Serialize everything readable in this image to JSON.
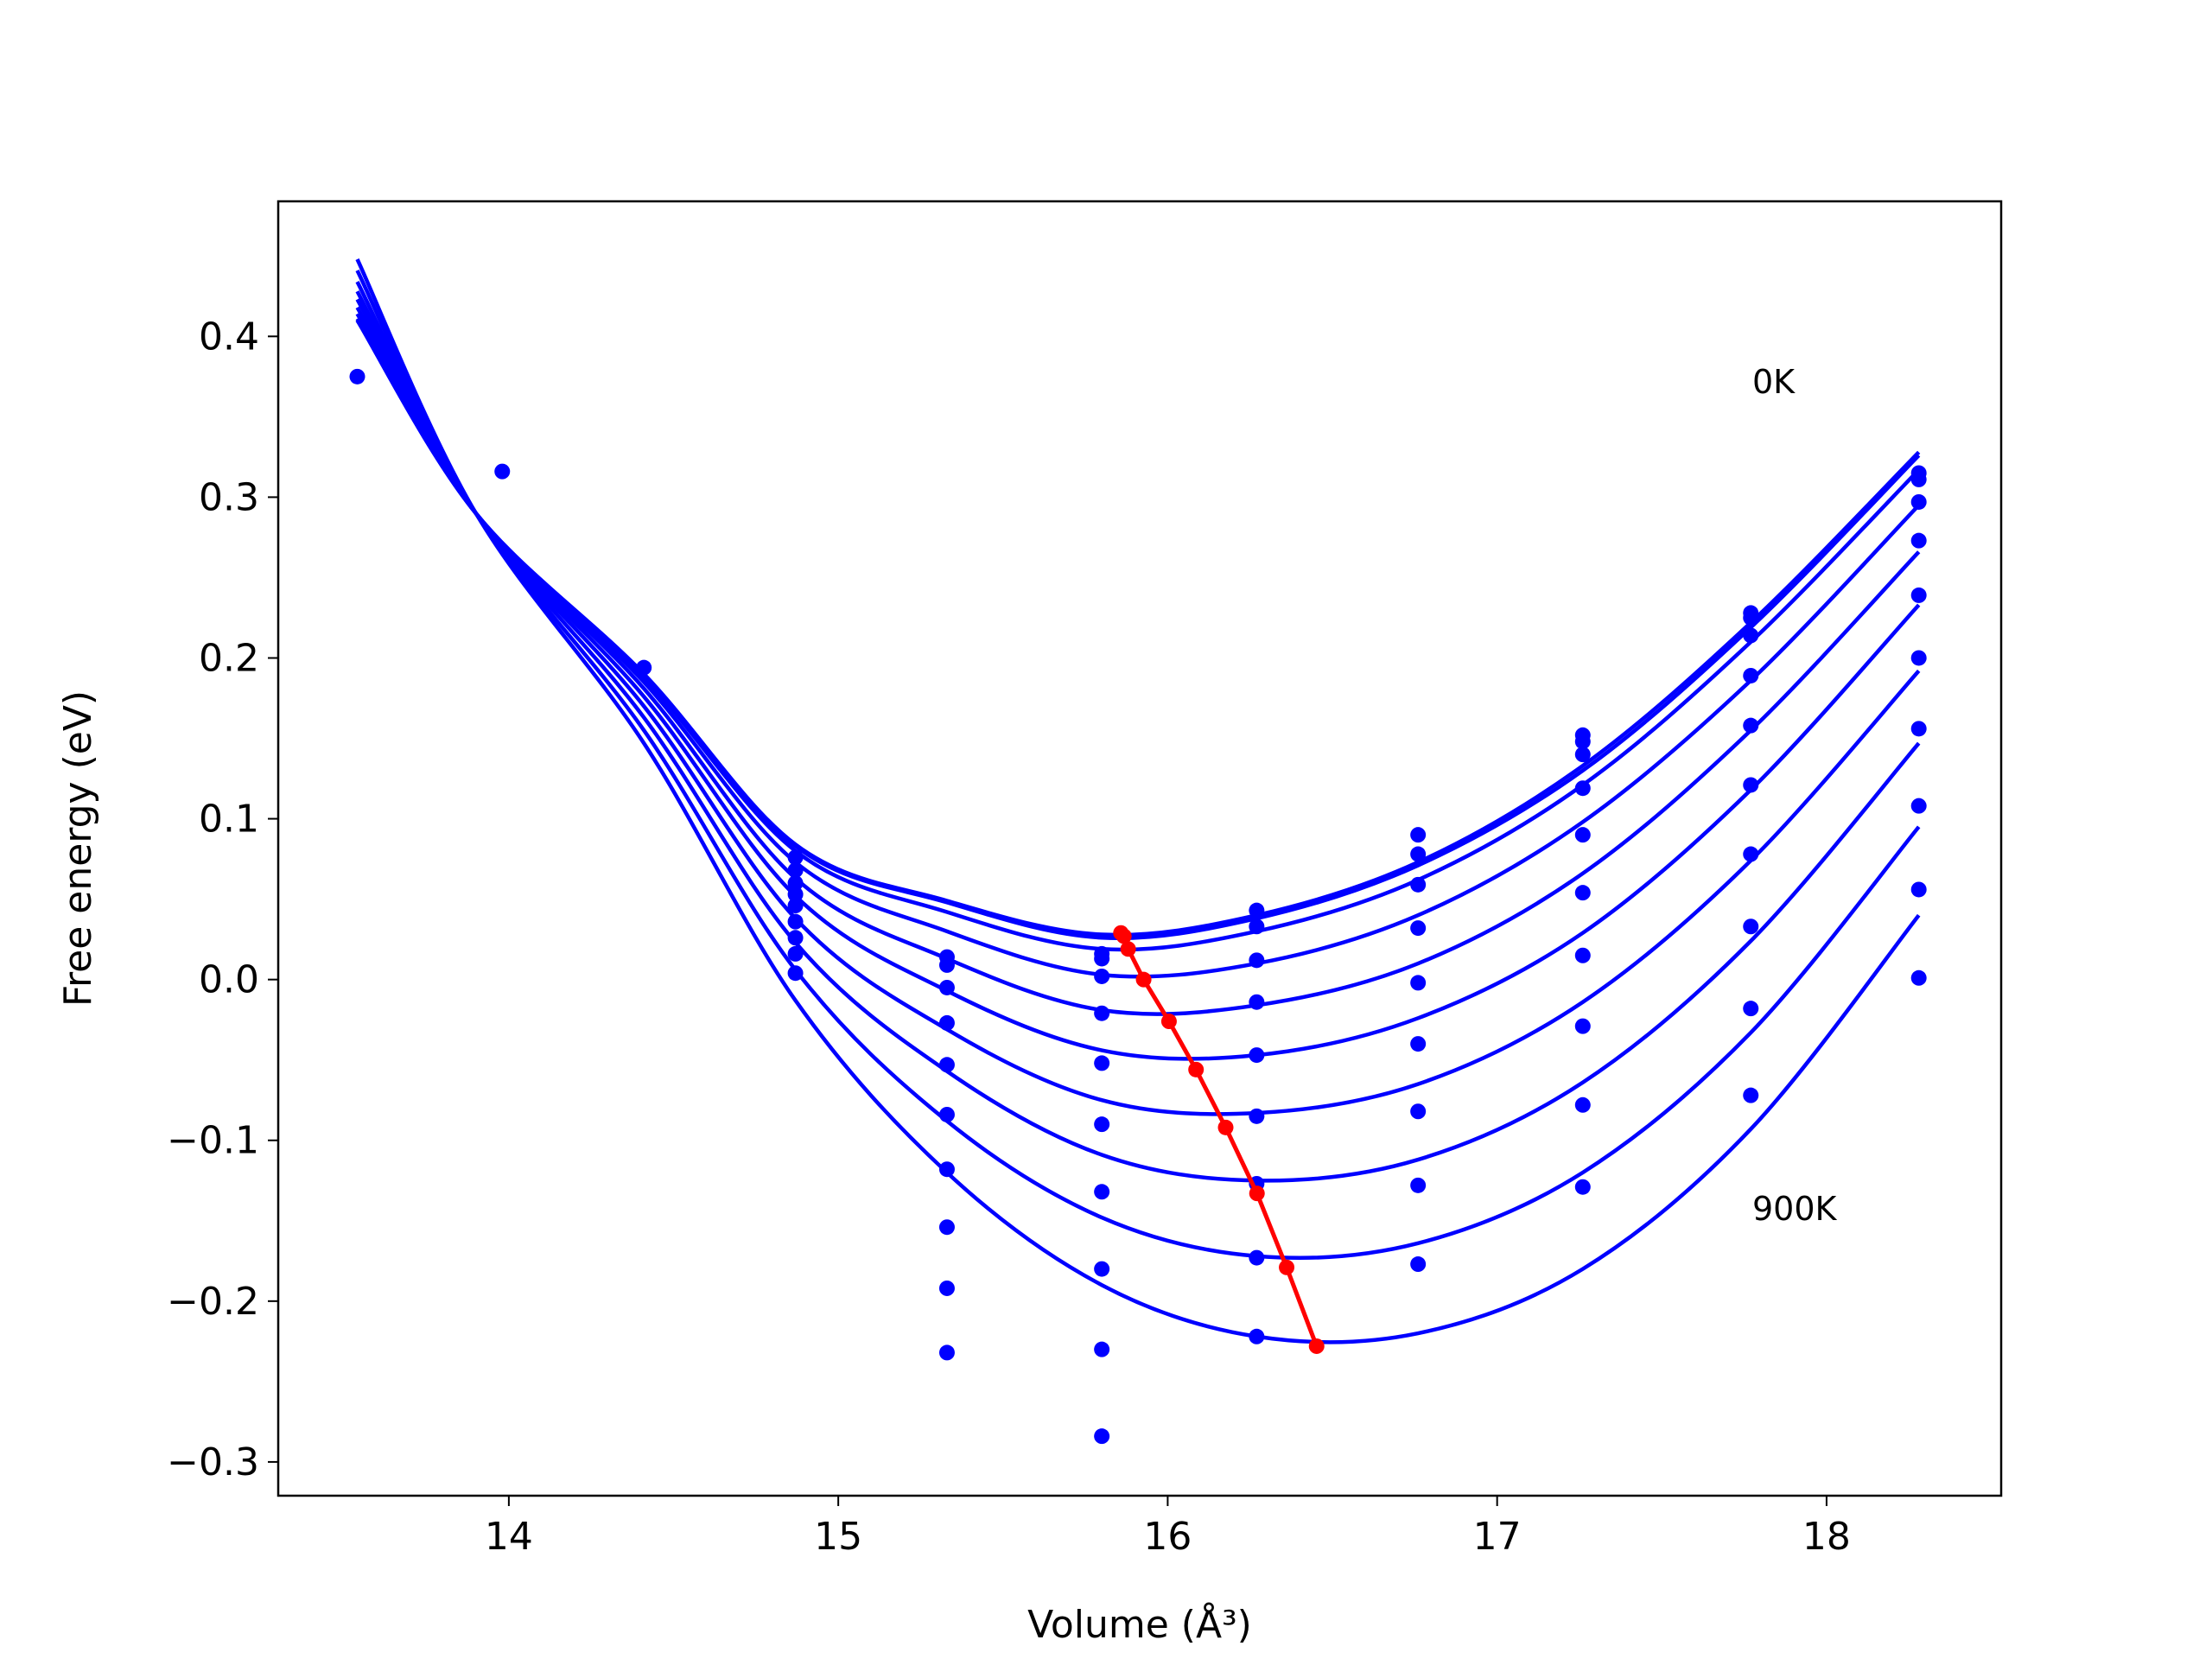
{
  "chart_data": {
    "type": "line",
    "xlabel": "Volume (Å³)",
    "ylabel": "Free energy (eV)",
    "annotations": [
      "0K",
      "900K"
    ],
    "xlim": [
      13.3,
      18.53
    ],
    "ylim": [
      -0.321,
      0.484
    ],
    "xticks": [
      14,
      15,
      16,
      17,
      18
    ],
    "yticks": [
      {
        "value": -0.3,
        "label": "−0.3"
      },
      {
        "value": -0.2,
        "label": "−0.2"
      },
      {
        "value": -0.1,
        "label": "−0.1"
      },
      {
        "value": 0,
        "label": "0.0"
      },
      0.1,
      0.2,
      0.3,
      0.4
    ],
    "x": [
      13.54,
      13.9,
      14.41,
      14.87,
      15.33,
      15.8,
      16.27,
      16.76,
      17.26,
      17.77,
      18.28
    ],
    "series": [
      {
        "color": "#0000ff",
        "values": [
          0.41,
          0.29,
          0.19,
          0.084,
          0.049,
          0.028,
          0.04,
          0.073,
          0.133,
          0.222,
          0.328
        ]
      },
      {
        "color": "#0000ff",
        "values": [
          0.41,
          0.29,
          0.19,
          0.083,
          0.048,
          0.026,
          0.038,
          0.071,
          0.13,
          0.219,
          0.326
        ]
      },
      {
        "color": "#0000ff",
        "values": [
          0.411,
          0.29,
          0.188,
          0.08,
          0.042,
          0.019,
          0.03,
          0.062,
          0.121,
          0.21,
          0.317
        ]
      },
      {
        "color": "#0000ff",
        "values": [
          0.414,
          0.29,
          0.185,
          0.073,
          0.03,
          0.003,
          0.01,
          0.04,
          0.098,
          0.186,
          0.295
        ]
      },
      {
        "color": "#0000ff",
        "values": [
          0.418,
          0.29,
          0.181,
          0.063,
          0.013,
          -0.019,
          -0.016,
          0.01,
          0.066,
          0.155,
          0.266
        ]
      },
      {
        "color": "#0000ff",
        "values": [
          0.423,
          0.29,
          0.176,
          0.052,
          -0.007,
          -0.044,
          -0.047,
          -0.024,
          0.029,
          0.118,
          0.233
        ]
      },
      {
        "color": "#0000ff",
        "values": [
          0.428,
          0.29,
          0.17,
          0.038,
          -0.031,
          -0.075,
          -0.083,
          -0.065,
          -0.014,
          0.074,
          0.192
        ]
      },
      {
        "color": "#0000ff",
        "values": [
          0.434,
          0.29,
          0.163,
          0.023,
          -0.057,
          -0.109,
          -0.125,
          -0.112,
          -0.064,
          0.024,
          0.147
        ]
      },
      {
        "color": "#0000ff",
        "values": [
          0.441,
          0.29,
          0.155,
          0.006,
          -0.088,
          -0.148,
          -0.172,
          -0.164,
          -0.12,
          -0.033,
          0.095
        ]
      },
      {
        "color": "#0000ff",
        "values": [
          0.448,
          0.29,
          0.147,
          -0.013,
          -0.12,
          -0.19,
          -0.222,
          -0.22,
          -0.18,
          -0.093,
          0.04
        ]
      }
    ],
    "points": {
      "color": "#0000ff",
      "x": [
        13.54,
        13.98,
        14.41,
        14.87,
        14.87,
        14.87,
        14.87,
        14.87,
        14.87,
        14.87,
        14.87,
        14.87,
        15.33,
        15.33,
        15.33,
        15.33,
        15.33,
        15.33,
        15.33,
        15.33,
        15.33,
        15.33,
        15.8,
        15.8,
        15.8,
        15.8,
        15.8,
        15.8,
        15.8,
        15.8,
        15.8,
        15.8,
        16.27,
        16.27,
        16.27,
        16.27,
        16.27,
        16.27,
        16.27,
        16.27,
        16.27,
        16.76,
        16.76,
        16.76,
        16.76,
        16.76,
        16.76,
        16.76,
        16.76,
        16.76,
        17.26,
        17.26,
        17.26,
        17.26,
        17.26,
        17.26,
        17.26,
        17.26,
        17.26,
        17.26,
        17.77,
        17.77,
        17.77,
        17.77,
        17.77,
        17.77,
        17.77,
        17.77,
        17.77,
        17.77,
        18.28,
        18.28,
        18.28,
        18.28,
        18.28,
        18.28,
        18.28,
        18.28,
        18.28,
        18.28
      ],
      "values": [
        0.375,
        0.316,
        0.194,
        0.076,
        0.068,
        0.06,
        0.053,
        0.046,
        0.036,
        0.026,
        0.016,
        0.004,
        0.014,
        0.009,
        -0.005,
        -0.027,
        -0.053,
        -0.084,
        -0.118,
        -0.154,
        -0.192,
        -0.232,
        0.016,
        0.013,
        0.002,
        -0.021,
        -0.052,
        -0.09,
        -0.132,
        -0.18,
        -0.23,
        -0.284,
        0.043,
        0.033,
        0.012,
        -0.014,
        -0.047,
        -0.085,
        -0.127,
        -0.173,
        -0.222,
        0.09,
        0.078,
        0.059,
        0.032,
        -0.002,
        -0.04,
        -0.082,
        -0.128,
        -0.177,
        0.152,
        0.148,
        0.14,
        0.119,
        0.09,
        0.054,
        0.015,
        -0.029,
        -0.078,
        -0.129,
        0.228,
        0.225,
        0.214,
        0.189,
        0.158,
        0.121,
        0.078,
        0.033,
        -0.018,
        -0.072,
        0.315,
        0.311,
        0.297,
        0.273,
        0.239,
        0.2,
        0.156,
        0.108,
        0.056,
        0.001
      ]
    },
    "minima": {
      "color": "#ff0000",
      "x": [
        15.858,
        15.867,
        15.88,
        15.927,
        16.004,
        16.086,
        16.176,
        16.271,
        16.361,
        16.452
      ],
      "values": [
        0.029,
        0.027,
        0.019,
        0,
        -0.026,
        -0.056,
        -0.092,
        -0.133,
        -0.179,
        -0.228
      ]
    }
  }
}
